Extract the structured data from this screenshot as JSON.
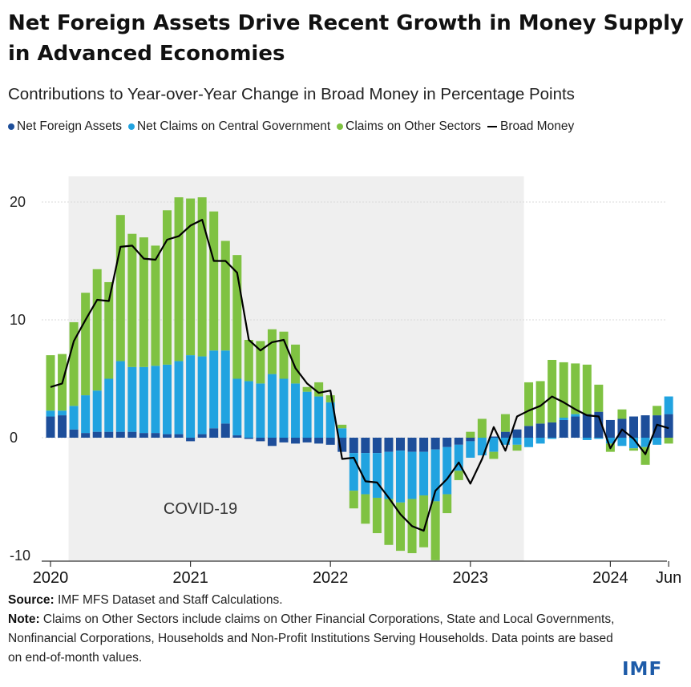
{
  "title": "Net Foreign Assets Drive Recent Growth in Money Supply in Advanced Economies",
  "subtitle": "Contributions to Year-over-Year Change in Broad Money in Percentage Points",
  "legend": {
    "nfa": "Net Foreign Assets",
    "ncg": "Net Claims on Central Government",
    "cos": "Claims on Other Sectors",
    "bm": "Broad Money"
  },
  "annotation": "COVID-19",
  "source_label": "Source:",
  "source_text": " IMF MFS Dataset and Staff Calculations.",
  "note_label": "Note:",
  "note_text": " Claims on Other Sectors include claims on Other Financial Corporations, State and Local Governments, Nonfinancial Corporations, Households and Non-Profit Institutions Serving Households. Data points are based on end-of-month values.",
  "logo": "IMF",
  "chart_data": {
    "type": "bar",
    "stacked": true,
    "colors": {
      "nfa": "#1d4e9a",
      "ncg": "#21a3e0",
      "cos": "#7fc242",
      "bm": "#000000",
      "shade": "#efefef"
    },
    "ylim": [
      -10,
      22
    ],
    "yticks": [
      -10,
      0,
      10,
      20
    ],
    "grid": true,
    "shaded_period": {
      "label": "COVID-19",
      "start": "2020-03",
      "end": "2023-05"
    },
    "x_tick_labels": [
      {
        "month": 0,
        "label": "2020"
      },
      {
        "month": 12,
        "label": "2021"
      },
      {
        "month": 24,
        "label": "2022"
      },
      {
        "month": 36,
        "label": "2023"
      },
      {
        "month": 48,
        "label": "2024"
      },
      {
        "month": 53,
        "label": "Jun"
      }
    ],
    "months": [
      "2020-01",
      "2020-02",
      "2020-03",
      "2020-04",
      "2020-05",
      "2020-06",
      "2020-07",
      "2020-08",
      "2020-09",
      "2020-10",
      "2020-11",
      "2020-12",
      "2021-01",
      "2021-02",
      "2021-03",
      "2021-04",
      "2021-05",
      "2021-06",
      "2021-07",
      "2021-08",
      "2021-09",
      "2021-10",
      "2021-11",
      "2021-12",
      "2022-01",
      "2022-02",
      "2022-03",
      "2022-04",
      "2022-05",
      "2022-06",
      "2022-07",
      "2022-08",
      "2022-09",
      "2022-10",
      "2022-11",
      "2022-12",
      "2023-01",
      "2023-02",
      "2023-03",
      "2023-04",
      "2023-05",
      "2023-06",
      "2023-07",
      "2023-08",
      "2023-09",
      "2023-10",
      "2023-11",
      "2023-12",
      "2024-01",
      "2024-02",
      "2024-03",
      "2024-04",
      "2024-05",
      "2024-06"
    ],
    "series": [
      {
        "name": "Net Foreign Assets",
        "key": "nfa",
        "values": [
          1.8,
          1.9,
          0.7,
          0.4,
          0.5,
          0.5,
          0.5,
          0.5,
          0.4,
          0.4,
          0.3,
          0.3,
          -0.3,
          0.3,
          0.8,
          1.2,
          0.2,
          -0.1,
          -0.3,
          -0.7,
          -0.4,
          -0.5,
          -0.4,
          -0.5,
          -0.6,
          -1.2,
          -1.3,
          -1.3,
          -1.3,
          -1.2,
          -1.1,
          -1.2,
          -1.2,
          -1.0,
          -0.8,
          -0.6,
          -0.3,
          0.0,
          0.1,
          0.5,
          0.7,
          1.0,
          1.2,
          1.3,
          1.5,
          1.8,
          2.0,
          2.2,
          1.5,
          1.6,
          1.8,
          1.9,
          1.9,
          2.0
        ]
      },
      {
        "name": "Net Claims on Central Government",
        "key": "ncg",
        "values": [
          0.5,
          0.4,
          2.0,
          3.2,
          3.5,
          4.5,
          6.0,
          5.5,
          5.6,
          5.7,
          5.9,
          6.2,
          7.0,
          6.6,
          6.6,
          6.2,
          4.8,
          4.8,
          4.6,
          5.4,
          5.0,
          4.6,
          3.9,
          3.5,
          3.0,
          0.8,
          -3.2,
          -3.5,
          -3.8,
          -4.0,
          -4.4,
          -4.0,
          -3.7,
          -4.4,
          -4.0,
          -2.2,
          -1.4,
          -1.5,
          -1.2,
          -0.6,
          -0.6,
          -0.8,
          -0.5,
          -0.1,
          0.2,
          0.2,
          -0.2,
          -0.1,
          -0.5,
          -0.7,
          -0.9,
          -0.8,
          -0.6,
          1.5
        ]
      },
      {
        "name": "Claims on Other Sectors",
        "key": "cos",
        "values": [
          4.7,
          4.8,
          7.1,
          8.7,
          10.3,
          8.2,
          12.4,
          11.3,
          11.0,
          10.2,
          13.1,
          13.9,
          13.3,
          13.5,
          11.8,
          9.3,
          10.5,
          3.5,
          3.6,
          3.8,
          4.0,
          3.3,
          0.4,
          1.2,
          0.6,
          0.3,
          -1.5,
          -2.5,
          -3.0,
          -3.9,
          -4.1,
          -4.6,
          -4.4,
          -5.0,
          -1.6,
          -0.8,
          0.5,
          1.6,
          -0.6,
          1.5,
          -0.5,
          3.7,
          3.6,
          5.3,
          4.7,
          4.3,
          4.2,
          2.3,
          -0.7,
          0.8,
          -0.2,
          -1.5,
          0.8,
          -0.5
        ]
      },
      {
        "name": "Broad Money",
        "key": "bm",
        "type": "line",
        "values": [
          4.3,
          4.6,
          8.2,
          10.0,
          11.7,
          11.6,
          16.2,
          16.3,
          15.2,
          15.1,
          16.8,
          17.1,
          18.0,
          18.5,
          15.0,
          15.0,
          14.0,
          8.3,
          7.4,
          8.1,
          8.3,
          5.9,
          4.6,
          3.8,
          4.0,
          -1.8,
          -1.7,
          -3.7,
          -3.8,
          -5.1,
          -6.5,
          -7.5,
          -7.9,
          -4.5,
          -3.5,
          -2.1,
          -3.9,
          -1.8,
          0.9,
          -1.1,
          1.8,
          2.3,
          2.7,
          3.5,
          3.0,
          2.4,
          1.9,
          1.8,
          -0.9,
          0.7,
          -0.1,
          -1.4,
          1.1,
          0.8
        ]
      }
    ]
  }
}
